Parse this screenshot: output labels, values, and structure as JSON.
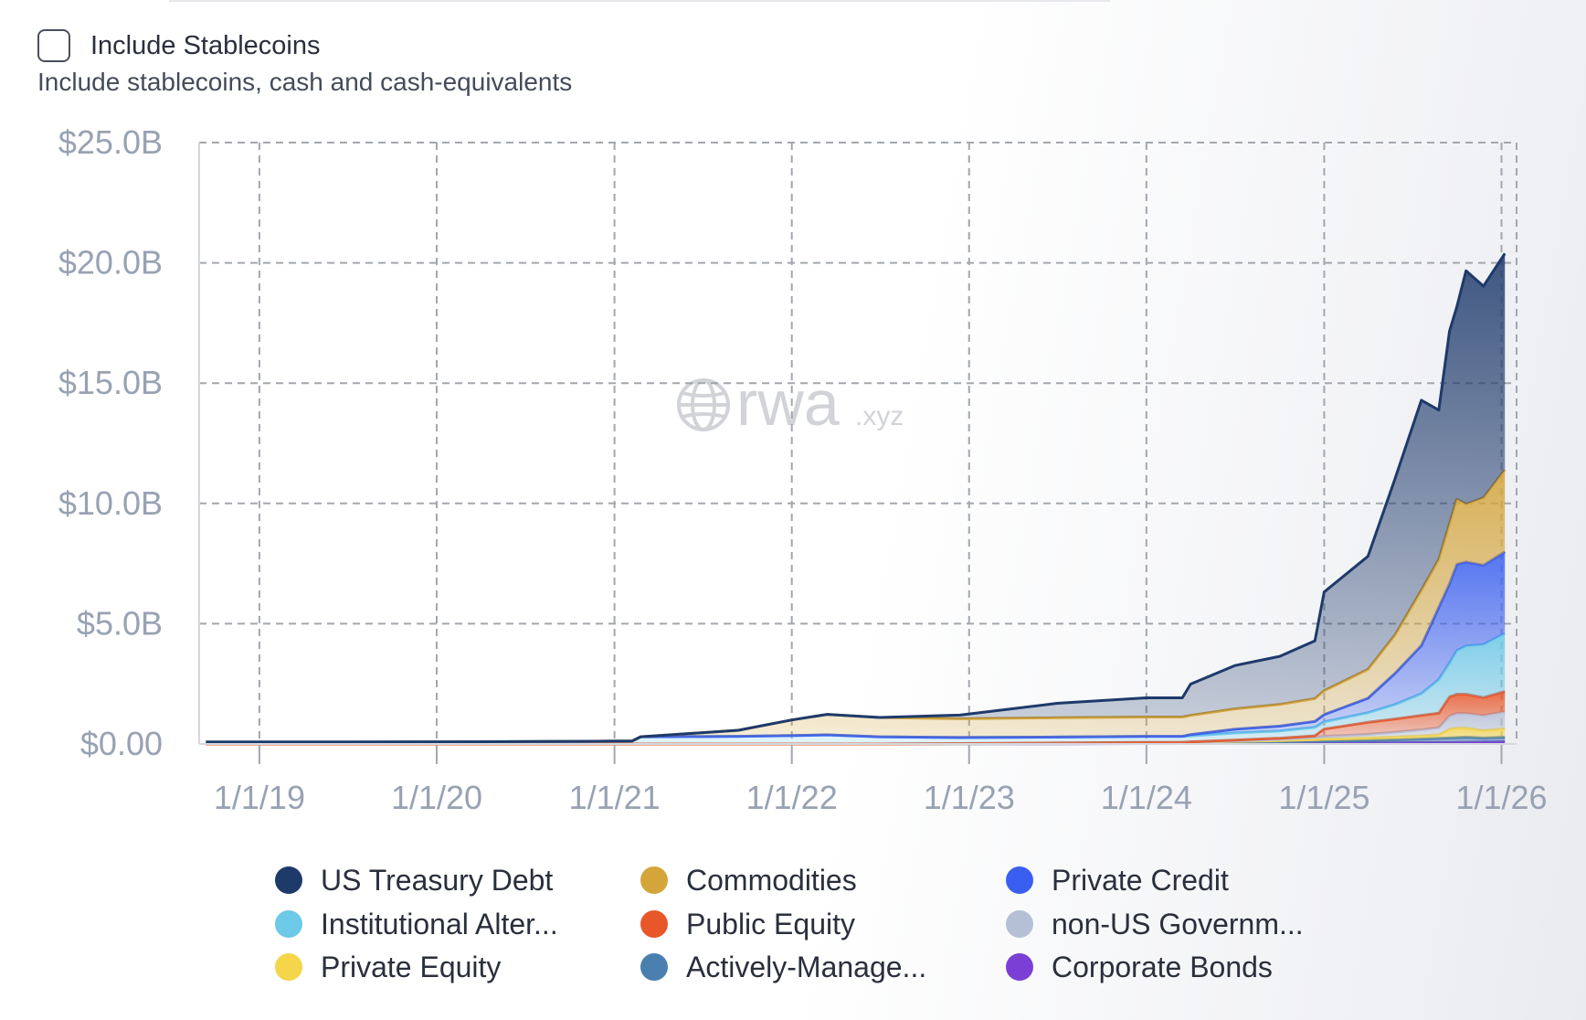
{
  "filter": {
    "checkbox_label": "Include Stablecoins",
    "checkbox_checked": false,
    "description": "Include stablecoins, cash and cash-equivalents"
  },
  "watermark": {
    "brand": "rwa",
    "suffix": ".xyz",
    "icon": "globe-icon"
  },
  "chart_data": {
    "type": "area",
    "stacked": true,
    "title": "",
    "xlabel": "",
    "ylabel": "",
    "ylim": [
      0,
      25
    ],
    "y_ticks": [
      0,
      5,
      10,
      15,
      20,
      25
    ],
    "y_tick_labels": [
      "$0.00",
      "$5.0B",
      "$10.0B",
      "$15.0B",
      "$20.0B",
      "$25.0B"
    ],
    "x_tick_labels": [
      "1/1/19",
      "1/1/20",
      "1/1/21",
      "1/1/22",
      "1/1/23",
      "1/1/24",
      "1/1/25",
      "1/1/26"
    ],
    "x_ticks": [
      "2019-01-01",
      "2020-01-01",
      "2021-01-01",
      "2022-01-01",
      "2023-01-01",
      "2024-01-01",
      "2025-01-01",
      "2026-01-01"
    ],
    "xlim": [
      "2018-08-30",
      "2026-02-01"
    ],
    "grid": true,
    "legend_position": "bottom",
    "units": "USD billions",
    "x": [
      "2018-09-13",
      "2019-07-01",
      "2020-07-01",
      "2021-02-06",
      "2021-02-24",
      "2021-09-13",
      "2022-01-01",
      "2022-03-15",
      "2022-07-01",
      "2022-12-13",
      "2023-07-01",
      "2024-01-01",
      "2024-03-15",
      "2024-04-01",
      "2024-07-01",
      "2024-10-01",
      "2024-12-13",
      "2025-01-01",
      "2025-04-01",
      "2025-05-27",
      "2025-07-20",
      "2025-08-25",
      "2025-09-16",
      "2025-10-01",
      "2025-10-20",
      "2025-11-25",
      "2026-01-08"
    ],
    "series": [
      {
        "name": "Corporate Bonds",
        "color": "#7b3fd6",
        "values": [
          0,
          0,
          0,
          0,
          0,
          0,
          0,
          0,
          0,
          0.01,
          0.01,
          0.02,
          0.02,
          0.02,
          0.03,
          0.03,
          0.04,
          0.04,
          0.05,
          0.05,
          0.06,
          0.06,
          0.06,
          0.07,
          0.07,
          0.08,
          0.09
        ]
      },
      {
        "name": "Actively-Manage...",
        "color": "#4a7fb0",
        "values": [
          0,
          0,
          0,
          0,
          0,
          0,
          0,
          0,
          0,
          0,
          0.02,
          0.03,
          0.03,
          0.03,
          0.05,
          0.06,
          0.08,
          0.08,
          0.1,
          0.12,
          0.15,
          0.18,
          0.2,
          0.2,
          0.22,
          0.18,
          0.2
        ]
      },
      {
        "name": "Private Equity",
        "color": "#f5d54a",
        "values": [
          0,
          0,
          0,
          0,
          0,
          0,
          0,
          0,
          0,
          0,
          0,
          0.01,
          0.01,
          0.02,
          0.03,
          0.05,
          0.06,
          0.08,
          0.1,
          0.12,
          0.13,
          0.14,
          0.35,
          0.4,
          0.38,
          0.3,
          0.35
        ]
      },
      {
        "name": "non-US Governm...",
        "color": "#b5bfd6",
        "values": [
          0,
          0,
          0,
          0,
          0,
          0,
          0,
          0,
          0,
          0,
          0,
          0,
          0,
          0,
          0.02,
          0.05,
          0.1,
          0.12,
          0.15,
          0.2,
          0.25,
          0.3,
          0.55,
          0.6,
          0.6,
          0.62,
          0.7
        ]
      },
      {
        "name": "Public Equity",
        "color": "#e8572a",
        "values": [
          0,
          0,
          0,
          0,
          0,
          0,
          0,
          0,
          0,
          0.01,
          0.01,
          0.01,
          0.01,
          0.02,
          0.03,
          0.05,
          0.06,
          0.3,
          0.5,
          0.55,
          0.6,
          0.6,
          0.8,
          0.8,
          0.8,
          0.75,
          0.85
        ]
      },
      {
        "name": "Institutional Alter...",
        "color": "#6cc9e8",
        "values": [
          0.08,
          0.08,
          0.1,
          0.12,
          0.3,
          0.32,
          0.35,
          0.38,
          0.3,
          0.25,
          0.25,
          0.25,
          0.25,
          0.25,
          0.3,
          0.3,
          0.35,
          0.3,
          0.4,
          0.6,
          0.9,
          1.4,
          1.4,
          1.8,
          2.0,
          2.2,
          2.4
        ]
      },
      {
        "name": "Private Credit",
        "color": "#3a5ff0",
        "values": [
          0,
          0,
          0,
          0,
          0,
          0,
          0,
          0,
          0,
          0,
          0,
          0,
          0,
          0.05,
          0.15,
          0.2,
          0.25,
          0.3,
          0.6,
          1.3,
          2.0,
          3.0,
          3.3,
          3.6,
          3.5,
          3.3,
          3.4
        ]
      },
      {
        "name": "Commodities",
        "color": "#d4a53a",
        "values": [
          0,
          0,
          0,
          0,
          0,
          0.25,
          0.65,
          0.85,
          0.8,
          0.78,
          0.8,
          0.8,
          0.8,
          0.8,
          0.85,
          0.9,
          0.95,
          1.0,
          1.2,
          1.6,
          2.3,
          2.0,
          2.5,
          2.7,
          2.4,
          2.8,
          3.4
        ]
      },
      {
        "name": "US Treasury Debt",
        "color": "#1e3a6b",
        "values": [
          0,
          0,
          0,
          0,
          0,
          0,
          0,
          0,
          0,
          0.15,
          0.6,
          0.8,
          0.8,
          1.3,
          1.8,
          2.0,
          2.4,
          4.1,
          4.7,
          6.5,
          7.9,
          6.2,
          8.0,
          8.0,
          9.7,
          8.8,
          9.0
        ]
      }
    ],
    "legend": [
      {
        "label": "US Treasury Debt",
        "color": "#1e3a6b"
      },
      {
        "label": "Commodities",
        "color": "#d4a53a"
      },
      {
        "label": "Private Credit",
        "color": "#3a5ff0"
      },
      {
        "label": "Institutional Alter...",
        "color": "#6cc9e8"
      },
      {
        "label": "Public Equity",
        "color": "#e8572a"
      },
      {
        "label": "non-US Governm...",
        "color": "#b5bfd6"
      },
      {
        "label": "Private Equity",
        "color": "#f5d54a"
      },
      {
        "label": "Actively-Manage...",
        "color": "#4a7fb0"
      },
      {
        "label": "Corporate Bonds",
        "color": "#7b3fd6"
      }
    ]
  }
}
